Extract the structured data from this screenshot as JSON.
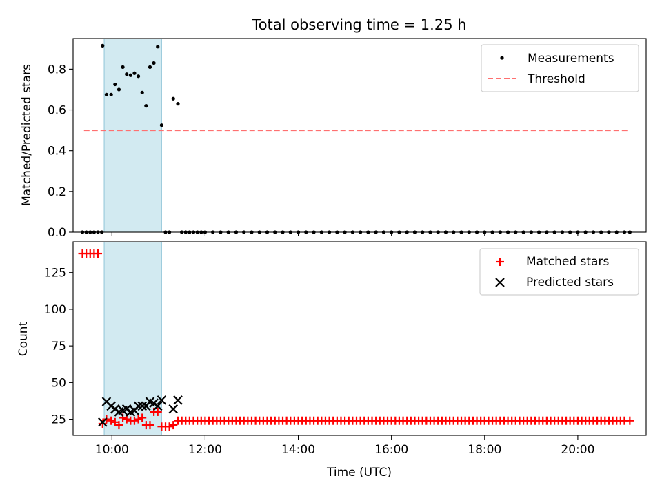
{
  "chart_data": [
    {
      "type": "scatter",
      "title": "Total observing time = 1.25 h",
      "xlabel": "",
      "ylabel": "Matched/Predicted stars",
      "xlim": [
        "09:10",
        "21:28"
      ],
      "ylim": [
        0,
        0.95
      ],
      "yticks": [
        0.0,
        0.2,
        0.4,
        0.6,
        0.8
      ],
      "ytick_labels": [
        "0.0",
        "0.2",
        "0.4",
        "0.6",
        "0.8"
      ],
      "shaded_region": {
        "start": "09:50",
        "end": "11:04",
        "color": "#add8e6"
      },
      "legend_position": "upper right",
      "series": [
        {
          "name": "Measurements",
          "kind": "scatter",
          "color": "#000000",
          "marker": "dot",
          "points": [
            [
              "09:22",
              0
            ],
            [
              "09:27",
              0
            ],
            [
              "09:32",
              0
            ],
            [
              "09:37",
              0
            ],
            [
              "09:42",
              0
            ],
            [
              "09:47",
              0
            ],
            [
              "09:48",
              0.915
            ],
            [
              "09:53",
              0.675
            ],
            [
              "09:59",
              0.675
            ],
            [
              "10:04",
              0.725
            ],
            [
              "10:09",
              0.7
            ],
            [
              "10:14",
              0.81
            ],
            [
              "10:19",
              0.775
            ],
            [
              "10:24",
              0.77
            ],
            [
              "10:29",
              0.78
            ],
            [
              "10:34",
              0.765
            ],
            [
              "10:39",
              0.685
            ],
            [
              "10:44",
              0.62
            ],
            [
              "10:49",
              0.81
            ],
            [
              "10:54",
              0.83
            ],
            [
              "10:59",
              0.91
            ],
            [
              "11:04",
              0.525
            ],
            [
              "11:09",
              0
            ],
            [
              "11:14",
              0
            ],
            [
              "11:19",
              0.655
            ],
            [
              "11:25",
              0.63
            ],
            [
              "11:30",
              0
            ],
            [
              "11:35",
              0
            ],
            [
              "11:40",
              0
            ],
            [
              "11:45",
              0
            ],
            [
              "11:50",
              0
            ],
            [
              "11:55",
              0
            ],
            [
              "12:00",
              0
            ],
            [
              "12:10",
              0
            ],
            [
              "12:20",
              0
            ],
            [
              "12:30",
              0
            ],
            [
              "12:40",
              0
            ],
            [
              "12:50",
              0
            ],
            [
              "13:00",
              0
            ],
            [
              "13:10",
              0
            ],
            [
              "13:20",
              0
            ],
            [
              "13:30",
              0
            ],
            [
              "13:40",
              0
            ],
            [
              "13:50",
              0
            ],
            [
              "14:00",
              0
            ],
            [
              "14:10",
              0
            ],
            [
              "14:20",
              0
            ],
            [
              "14:30",
              0
            ],
            [
              "14:40",
              0
            ],
            [
              "14:50",
              0
            ],
            [
              "15:00",
              0
            ],
            [
              "15:10",
              0
            ],
            [
              "15:20",
              0
            ],
            [
              "15:30",
              0
            ],
            [
              "15:40",
              0
            ],
            [
              "15:50",
              0
            ],
            [
              "16:00",
              0
            ],
            [
              "16:10",
              0
            ],
            [
              "16:20",
              0
            ],
            [
              "16:30",
              0
            ],
            [
              "16:40",
              0
            ],
            [
              "16:50",
              0
            ],
            [
              "17:00",
              0
            ],
            [
              "17:10",
              0
            ],
            [
              "17:20",
              0
            ],
            [
              "17:30",
              0
            ],
            [
              "17:40",
              0
            ],
            [
              "17:50",
              0
            ],
            [
              "18:00",
              0
            ],
            [
              "18:10",
              0
            ],
            [
              "18:20",
              0
            ],
            [
              "18:30",
              0
            ],
            [
              "18:40",
              0
            ],
            [
              "18:50",
              0
            ],
            [
              "19:00",
              0
            ],
            [
              "19:10",
              0
            ],
            [
              "19:20",
              0
            ],
            [
              "19:30",
              0
            ],
            [
              "19:40",
              0
            ],
            [
              "19:50",
              0
            ],
            [
              "20:00",
              0
            ],
            [
              "20:10",
              0
            ],
            [
              "20:20",
              0
            ],
            [
              "20:30",
              0
            ],
            [
              "20:40",
              0
            ],
            [
              "20:50",
              0
            ],
            [
              "21:00",
              0
            ],
            [
              "21:07",
              0
            ]
          ]
        },
        {
          "name": "Threshold",
          "kind": "dashed-line",
          "color": "#ff7070",
          "x": [
            "09:24",
            "21:07"
          ],
          "y": [
            0.5,
            0.5
          ]
        }
      ]
    },
    {
      "type": "scatter",
      "title": "",
      "xlabel": "Time (UTC)",
      "ylabel": "Count",
      "xlim": [
        "09:10",
        "21:28"
      ],
      "ylim": [
        14,
        146
      ],
      "xticks": [
        "10:00",
        "12:00",
        "14:00",
        "16:00",
        "18:00",
        "20:00"
      ],
      "yticks": [
        25,
        50,
        75,
        100,
        125
      ],
      "ytick_labels": [
        "25",
        "50",
        "75",
        "100",
        "125"
      ],
      "shaded_region": {
        "start": "09:50",
        "end": "11:04",
        "color": "#add8e6"
      },
      "legend_position": "upper right",
      "series": [
        {
          "name": "Matched stars",
          "kind": "scatter",
          "color": "#ff0000",
          "marker": "plus",
          "points": [
            [
              "09:22",
              138
            ],
            [
              "09:27",
              138
            ],
            [
              "09:32",
              138
            ],
            [
              "09:37",
              138
            ],
            [
              "09:42",
              138
            ],
            [
              "09:48",
              22
            ],
            [
              "09:53",
              25
            ],
            [
              "09:59",
              24
            ],
            [
              "10:04",
              23
            ],
            [
              "10:09",
              21
            ],
            [
              "10:14",
              26
            ],
            [
              "10:19",
              25
            ],
            [
              "10:24",
              24
            ],
            [
              "10:29",
              24
            ],
            [
              "10:34",
              25
            ],
            [
              "10:39",
              26
            ],
            [
              "10:44",
              21
            ],
            [
              "10:49",
              21
            ],
            [
              "10:54",
              30
            ],
            [
              "10:59",
              30
            ],
            [
              "11:04",
              20
            ],
            [
              "11:09",
              20
            ],
            [
              "11:14",
              20
            ],
            [
              "11:19",
              21
            ],
            [
              "11:25",
              24
            ],
            [
              "11:30",
              24
            ],
            [
              "11:35",
              24
            ],
            [
              "11:40",
              24
            ],
            [
              "11:45",
              24
            ],
            [
              "11:50",
              24
            ],
            [
              "11:55",
              24
            ],
            [
              "12:00",
              24
            ],
            [
              "12:05",
              24
            ],
            [
              "12:10",
              24
            ],
            [
              "12:15",
              24
            ],
            [
              "12:20",
              24
            ],
            [
              "12:25",
              24
            ],
            [
              "12:30",
              24
            ],
            [
              "12:35",
              24
            ],
            [
              "12:40",
              24
            ],
            [
              "12:45",
              24
            ],
            [
              "12:50",
              24
            ],
            [
              "12:55",
              24
            ],
            [
              "13:00",
              24
            ],
            [
              "13:05",
              24
            ],
            [
              "13:10",
              24
            ],
            [
              "13:15",
              24
            ],
            [
              "13:20",
              24
            ],
            [
              "13:25",
              24
            ],
            [
              "13:30",
              24
            ],
            [
              "13:35",
              24
            ],
            [
              "13:40",
              24
            ],
            [
              "13:45",
              24
            ],
            [
              "13:50",
              24
            ],
            [
              "13:55",
              24
            ],
            [
              "14:00",
              24
            ],
            [
              "14:05",
              24
            ],
            [
              "14:10",
              24
            ],
            [
              "14:15",
              24
            ],
            [
              "14:20",
              24
            ],
            [
              "14:25",
              24
            ],
            [
              "14:30",
              24
            ],
            [
              "14:35",
              24
            ],
            [
              "14:40",
              24
            ],
            [
              "14:45",
              24
            ],
            [
              "14:50",
              24
            ],
            [
              "14:55",
              24
            ],
            [
              "15:00",
              24
            ],
            [
              "15:05",
              24
            ],
            [
              "15:10",
              24
            ],
            [
              "15:15",
              24
            ],
            [
              "15:20",
              24
            ],
            [
              "15:25",
              24
            ],
            [
              "15:30",
              24
            ],
            [
              "15:35",
              24
            ],
            [
              "15:40",
              24
            ],
            [
              "15:45",
              24
            ],
            [
              "15:50",
              24
            ],
            [
              "15:55",
              24
            ],
            [
              "16:00",
              24
            ],
            [
              "16:05",
              24
            ],
            [
              "16:10",
              24
            ],
            [
              "16:15",
              24
            ],
            [
              "16:20",
              24
            ],
            [
              "16:25",
              24
            ],
            [
              "16:30",
              24
            ],
            [
              "16:35",
              24
            ],
            [
              "16:40",
              24
            ],
            [
              "16:45",
              24
            ],
            [
              "16:50",
              24
            ],
            [
              "16:55",
              24
            ],
            [
              "17:00",
              24
            ],
            [
              "17:05",
              24
            ],
            [
              "17:10",
              24
            ],
            [
              "17:15",
              24
            ],
            [
              "17:20",
              24
            ],
            [
              "17:25",
              24
            ],
            [
              "17:30",
              24
            ],
            [
              "17:35",
              24
            ],
            [
              "17:40",
              24
            ],
            [
              "17:45",
              24
            ],
            [
              "17:50",
              24
            ],
            [
              "17:55",
              24
            ],
            [
              "18:00",
              24
            ],
            [
              "18:05",
              24
            ],
            [
              "18:10",
              24
            ],
            [
              "18:15",
              24
            ],
            [
              "18:20",
              24
            ],
            [
              "18:25",
              24
            ],
            [
              "18:30",
              24
            ],
            [
              "18:35",
              24
            ],
            [
              "18:40",
              24
            ],
            [
              "18:45",
              24
            ],
            [
              "18:50",
              24
            ],
            [
              "18:55",
              24
            ],
            [
              "19:00",
              24
            ],
            [
              "19:05",
              24
            ],
            [
              "19:10",
              24
            ],
            [
              "19:15",
              24
            ],
            [
              "19:20",
              24
            ],
            [
              "19:25",
              24
            ],
            [
              "19:30",
              24
            ],
            [
              "19:35",
              24
            ],
            [
              "19:40",
              24
            ],
            [
              "19:45",
              24
            ],
            [
              "19:50",
              24
            ],
            [
              "19:55",
              24
            ],
            [
              "20:00",
              24
            ],
            [
              "20:05",
              24
            ],
            [
              "20:10",
              24
            ],
            [
              "20:15",
              24
            ],
            [
              "20:20",
              24
            ],
            [
              "20:25",
              24
            ],
            [
              "20:30",
              24
            ],
            [
              "20:35",
              24
            ],
            [
              "20:40",
              24
            ],
            [
              "20:45",
              24
            ],
            [
              "20:50",
              24
            ],
            [
              "20:55",
              24
            ],
            [
              "21:00",
              24
            ],
            [
              "21:07",
              24
            ]
          ]
        },
        {
          "name": "Predicted stars",
          "kind": "scatter",
          "color": "#000000",
          "marker": "x",
          "points": [
            [
              "09:48",
              23
            ],
            [
              "09:53",
              37
            ],
            [
              "09:59",
              34
            ],
            [
              "10:04",
              32
            ],
            [
              "10:09",
              30
            ],
            [
              "10:14",
              31
            ],
            [
              "10:19",
              32
            ],
            [
              "10:24",
              30
            ],
            [
              "10:29",
              31
            ],
            [
              "10:34",
              34
            ],
            [
              "10:39",
              34
            ],
            [
              "10:44",
              34
            ],
            [
              "10:49",
              37
            ],
            [
              "10:54",
              36
            ],
            [
              "10:59",
              34
            ],
            [
              "11:04",
              38
            ],
            [
              "11:19",
              32
            ],
            [
              "11:25",
              38
            ]
          ]
        }
      ]
    }
  ]
}
